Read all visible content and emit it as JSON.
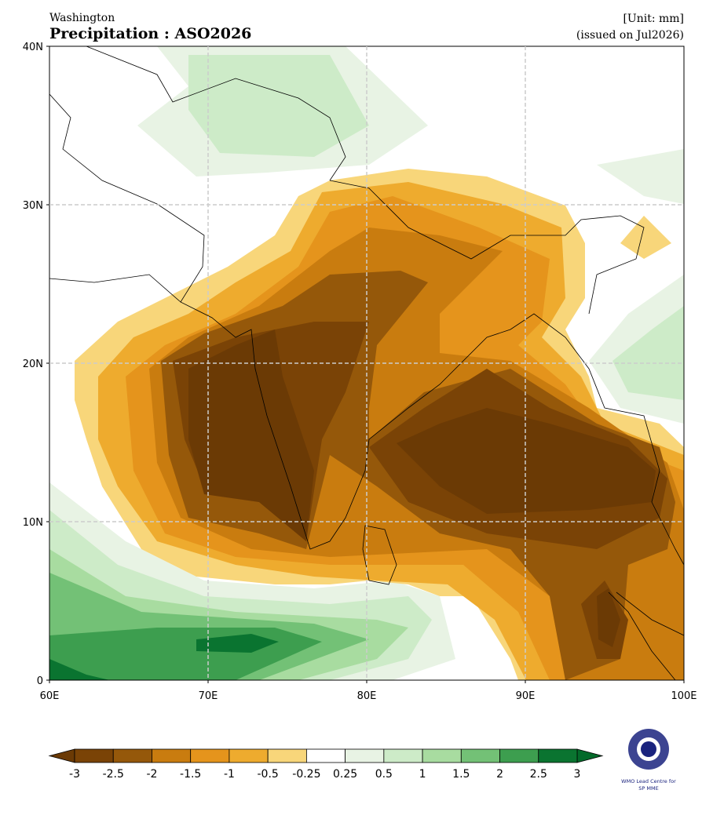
{
  "header": {
    "source": "Washington",
    "title": "Precipitation : ASO2026",
    "unit": "[Unit: mm]",
    "issued": "(issued on Jul2026)"
  },
  "map": {
    "lon_range": [
      60,
      100
    ],
    "lat_range": [
      0,
      40
    ],
    "lon_ticks": [
      {
        "value": 60,
        "label": "60E"
      },
      {
        "value": 70,
        "label": "70E"
      },
      {
        "value": 80,
        "label": "80E"
      },
      {
        "value": 90,
        "label": "90E"
      },
      {
        "value": 100,
        "label": "100E"
      }
    ],
    "lat_ticks": [
      {
        "value": 0,
        "label": "0"
      },
      {
        "value": 10,
        "label": "10N"
      },
      {
        "value": 20,
        "label": "20N"
      },
      {
        "value": 30,
        "label": "30N"
      },
      {
        "value": 40,
        "label": "40N"
      }
    ],
    "grid": true
  },
  "colorbar": {
    "levels": [
      -3,
      -2.5,
      -2,
      -1.5,
      -1,
      -0.5,
      -0.25,
      0.25,
      0.5,
      1,
      1.5,
      2,
      2.5,
      3
    ],
    "colors": [
      "#7a4306",
      "#95580a",
      "#c97c0f",
      "#e5941c",
      "#eeab2e",
      "#f8d67a",
      "#ffffff",
      "#e8f3e4",
      "#cdebc8",
      "#a8dca0",
      "#73c176",
      "#3d9e4f",
      "#0a7430"
    ],
    "under_color": "#6b3a05",
    "over_color": "#036a2a"
  },
  "logo": {
    "line1": "WMO Lead Centre for",
    "line2": "SP MME"
  }
}
